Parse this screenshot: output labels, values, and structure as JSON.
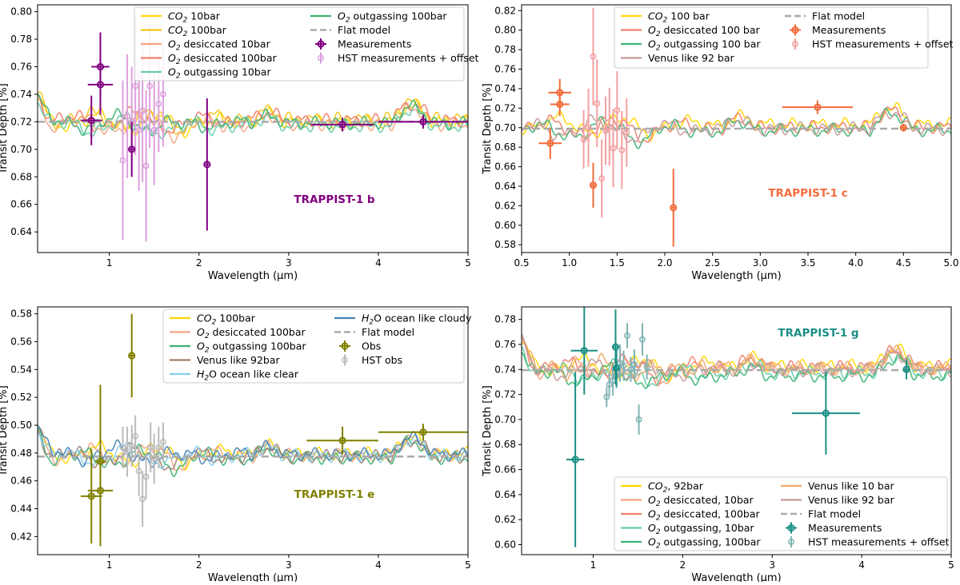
{
  "chart_data": [
    {
      "type": "line",
      "title": "TRAPPIST-1 b",
      "title_color": "#800080",
      "xlabel": "Wavelength (μm)",
      "ylabel": "Transit Depth [%]",
      "xlim": [
        0.2,
        5.0
      ],
      "ylim": [
        0.625,
        0.805
      ],
      "xticks": [
        1,
        2,
        3,
        4,
        5
      ],
      "yticks": [
        0.64,
        0.66,
        0.68,
        0.7,
        0.72,
        0.74,
        0.76,
        0.78,
        0.8
      ],
      "ytick_format": 2,
      "baseline": 0.72,
      "legend_position": "top-center",
      "series": [
        {
          "name": "CO2 10bar",
          "prefix": "CO",
          "sub": "2",
          "suffix": " 10bar",
          "color": "#ffd700",
          "offset": 0.0
        },
        {
          "name": "CO2 100bar",
          "prefix": "CO",
          "sub": "2",
          "suffix": " 100bar",
          "color": "#f5c518",
          "offset": 0.002
        },
        {
          "name": "O2 desiccated 10bar",
          "prefix": "O",
          "sub": "2",
          "suffix": " desiccated 10bar",
          "color": "#f4a582",
          "offset": -0.002
        },
        {
          "name": "O2 desiccated 100bar",
          "prefix": "O",
          "sub": "2",
          "suffix": " desiccated 100bar",
          "color": "#f08070",
          "offset": 0.001
        },
        {
          "name": "O2 outgassing 10bar",
          "prefix": "O",
          "sub": "2",
          "suffix": " outgassing 10bar",
          "color": "#66cdaa",
          "offset": -0.003
        },
        {
          "name": "O2 outgassing 100bar",
          "prefix": "O",
          "sub": "2",
          "suffix": " outgassing 100bar",
          "color": "#3cb371",
          "offset": -0.001
        },
        {
          "name": "Flat model",
          "color": "#aaaaaa",
          "dashed": true
        }
      ],
      "measurements": {
        "name": "Measurements",
        "color": "#800080",
        "points": [
          {
            "x": 0.8,
            "y": 0.721,
            "xerr": 0.12,
            "yerr": 0.018
          },
          {
            "x": 0.9,
            "y": 0.76,
            "xerr": 0.1,
            "yerr": 0.025
          },
          {
            "x": 0.9,
            "y": 0.747,
            "xerr": 0.14,
            "yerr": 0.022
          },
          {
            "x": 1.25,
            "y": 0.7,
            "xerr": 0.04,
            "yerr": 0.02
          },
          {
            "x": 2.09,
            "y": 0.689,
            "xerr": 0.02,
            "yerr": 0.048
          },
          {
            "x": 3.6,
            "y": 0.718,
            "xerr": 0.35,
            "yerr": 0.005
          },
          {
            "x": 4.5,
            "y": 0.72,
            "xerr": 0.5,
            "yerr": 0.005
          }
        ]
      },
      "hst": {
        "name": "HST measurements + offset",
        "color": "#dda0dd",
        "points": [
          {
            "x": 1.15,
            "y": 0.692,
            "yerr": 0.058
          },
          {
            "x": 1.2,
            "y": 0.724,
            "yerr": 0.045
          },
          {
            "x": 1.25,
            "y": 0.72,
            "yerr": 0.04
          },
          {
            "x": 1.29,
            "y": 0.746,
            "yerr": 0.05
          },
          {
            "x": 1.33,
            "y": 0.714,
            "yerr": 0.044
          },
          {
            "x": 1.37,
            "y": 0.728,
            "yerr": 0.052
          },
          {
            "x": 1.41,
            "y": 0.688,
            "yerr": 0.055
          },
          {
            "x": 1.45,
            "y": 0.746,
            "yerr": 0.045
          },
          {
            "x": 1.5,
            "y": 0.714,
            "yerr": 0.04
          },
          {
            "x": 1.55,
            "y": 0.733,
            "yerr": 0.035
          },
          {
            "x": 1.6,
            "y": 0.74,
            "yerr": 0.038
          }
        ]
      },
      "legend_columns": [
        [
          "CO2 10bar",
          "CO2 100bar",
          "O2 desiccated 10bar",
          "O2 desiccated 100bar",
          "O2 outgassing 10bar"
        ],
        [
          "O2 outgassing 100bar",
          "Flat model",
          "Measurements",
          "HST measurements + offset"
        ]
      ]
    },
    {
      "type": "line",
      "title": "TRAPPIST-1 c",
      "title_color": "#f26b3a",
      "xlabel": "Wavelength (μm)",
      "ylabel": "Transit Depth [%]",
      "xlim": [
        0.5,
        5.0
      ],
      "ylim": [
        0.572,
        0.826
      ],
      "xticks": [
        0.5,
        1.0,
        1.5,
        2.0,
        2.5,
        3.0,
        3.5,
        4.0,
        4.5,
        5.0
      ],
      "xtick_format": 1,
      "yticks": [
        0.58,
        0.6,
        0.62,
        0.64,
        0.66,
        0.68,
        0.7,
        0.72,
        0.74,
        0.76,
        0.78,
        0.8,
        0.82
      ],
      "ytick_format": 2,
      "baseline": 0.699,
      "legend_position": "top-center",
      "series": [
        {
          "name": "CO2 100 bar",
          "prefix": "CO",
          "sub": "2",
          "suffix": " 100 bar",
          "color": "#ffd700",
          "offset": 0.003
        },
        {
          "name": "O2 desiccated 100 bar",
          "prefix": "O",
          "sub": "2",
          "suffix": " desiccated 100 bar",
          "color": "#f08070",
          "offset": 0.001
        },
        {
          "name": "O2 outgassing 100 bar",
          "prefix": "O",
          "sub": "2",
          "suffix": " outgassing 100 bar",
          "color": "#3cb371",
          "offset": -0.001
        },
        {
          "name": "Venus like 92 bar",
          "color": "#c49a9a",
          "offset": 0.0
        },
        {
          "name": "Flat model",
          "color": "#aaaaaa",
          "dashed": true
        }
      ],
      "measurements": {
        "name": "Measurements",
        "color": "#f26b3a",
        "points": [
          {
            "x": 0.8,
            "y": 0.684,
            "xerr": 0.12,
            "yerr": 0.016
          },
          {
            "x": 0.9,
            "y": 0.736,
            "xerr": 0.12,
            "yerr": 0.014
          },
          {
            "x": 0.9,
            "y": 0.724,
            "xerr": 0.1,
            "yerr": 0.012
          },
          {
            "x": 1.25,
            "y": 0.641,
            "xerr": 0.03,
            "yerr": 0.023
          },
          {
            "x": 2.09,
            "y": 0.618,
            "xerr": 0.02,
            "yerr": 0.04
          },
          {
            "x": 3.6,
            "y": 0.721,
            "xerr": 0.37,
            "yerr": 0.007
          },
          {
            "x": 4.5,
            "y": 0.7,
            "xerr": 0.03,
            "yerr": 0.004
          }
        ]
      },
      "hst": {
        "name": "HST measurements + offset",
        "color": "#f4a0a0",
        "points": [
          {
            "x": 1.15,
            "y": 0.688,
            "yerr": 0.03
          },
          {
            "x": 1.2,
            "y": 0.7,
            "yerr": 0.04
          },
          {
            "x": 1.25,
            "y": 0.773,
            "yerr": 0.05
          },
          {
            "x": 1.29,
            "y": 0.725,
            "yerr": 0.045
          },
          {
            "x": 1.34,
            "y": 0.648,
            "yerr": 0.04
          },
          {
            "x": 1.38,
            "y": 0.697,
            "yerr": 0.035
          },
          {
            "x": 1.42,
            "y": 0.701,
            "yerr": 0.04
          },
          {
            "x": 1.46,
            "y": 0.679,
            "yerr": 0.04
          },
          {
            "x": 1.5,
            "y": 0.718,
            "yerr": 0.04
          },
          {
            "x": 1.55,
            "y": 0.677,
            "yerr": 0.04
          },
          {
            "x": 1.6,
            "y": 0.695,
            "yerr": 0.035
          }
        ]
      },
      "legend_columns": [
        [
          "CO2 100 bar",
          "O2 desiccated 100 bar",
          "O2 outgassing 100 bar",
          "Venus like 92 bar"
        ],
        [
          "Flat model",
          "Measurements",
          "HST measurements + offset"
        ]
      ]
    },
    {
      "type": "line",
      "title": "TRAPPIST-1 e",
      "title_color": "#808000",
      "xlabel": "Wavelength (μm)",
      "ylabel": "Transit Depth [%]",
      "xlim": [
        0.2,
        5.0
      ],
      "ylim": [
        0.407,
        0.585
      ],
      "xticks": [
        1,
        2,
        3,
        4,
        5
      ],
      "yticks": [
        0.42,
        0.44,
        0.46,
        0.48,
        0.5,
        0.52,
        0.54,
        0.56,
        0.58
      ],
      "ytick_format": 2,
      "baseline": 0.4775,
      "legend_position": "top-center",
      "series": [
        {
          "name": "CO2 100bar",
          "prefix": "CO",
          "sub": "2",
          "suffix": " 100bar",
          "color": "#ffd700",
          "offset": 0.002
        },
        {
          "name": "O2 desiccated 100bar",
          "prefix": "O",
          "sub": "2",
          "suffix": " desiccated 100bar",
          "color": "#f4a582",
          "offset": 0.001
        },
        {
          "name": "O2 outgassing 100bar",
          "prefix": "O",
          "sub": "2",
          "suffix": " outgassing 100bar",
          "color": "#3cb371",
          "offset": -0.001
        },
        {
          "name": "Venus like 92bar",
          "color": "#a08070",
          "offset": 0.0
        },
        {
          "name": "H2O ocean like clear",
          "prefix": "H",
          "sub": "2",
          "suffix": "O ocean like clear",
          "color": "#87ceeb",
          "offset": 0.0005
        },
        {
          "name": "H2O ocean like cloudy",
          "prefix": "H",
          "sub": "2",
          "suffix": "O ocean like cloudy",
          "color": "#4682b4",
          "offset": 0.0015
        },
        {
          "name": "Flat model",
          "color": "#aaaaaa",
          "dashed": true
        }
      ],
      "measurements": {
        "name": "Obs",
        "color": "#808000",
        "points": [
          {
            "x": 0.8,
            "y": 0.449,
            "xerr": 0.12,
            "yerr": 0.034
          },
          {
            "x": 0.9,
            "y": 0.453,
            "xerr": 0.14,
            "yerr": 0.04
          },
          {
            "x": 0.9,
            "y": 0.474,
            "xerr": 0.06,
            "yerr": 0.055
          },
          {
            "x": 1.25,
            "y": 0.55,
            "xerr": 0.03,
            "yerr": 0.03
          },
          {
            "x": 3.6,
            "y": 0.489,
            "xerr": 0.4,
            "yerr": 0.01
          },
          {
            "x": 4.5,
            "y": 0.495,
            "xerr": 0.5,
            "yerr": 0.006
          }
        ]
      },
      "hst": {
        "name": "HST obs",
        "color": "#bbbbbb",
        "points": [
          {
            "x": 1.15,
            "y": 0.484,
            "yerr": 0.015
          },
          {
            "x": 1.2,
            "y": 0.481,
            "yerr": 0.018
          },
          {
            "x": 1.25,
            "y": 0.485,
            "yerr": 0.015
          },
          {
            "x": 1.29,
            "y": 0.492,
            "yerr": 0.015
          },
          {
            "x": 1.33,
            "y": 0.467,
            "yerr": 0.018
          },
          {
            "x": 1.37,
            "y": 0.447,
            "yerr": 0.02
          },
          {
            "x": 1.41,
            "y": 0.463,
            "yerr": 0.016
          },
          {
            "x": 1.46,
            "y": 0.484,
            "yerr": 0.018
          },
          {
            "x": 1.5,
            "y": 0.476,
            "yerr": 0.018
          },
          {
            "x": 1.55,
            "y": 0.484,
            "yerr": 0.015
          },
          {
            "x": 1.6,
            "y": 0.488,
            "yerr": 0.014
          }
        ]
      },
      "legend_columns": [
        [
          "CO2 100bar",
          "O2 desiccated 100bar",
          "O2 outgassing 100bar",
          "Venus like 92bar",
          "H2O ocean like clear"
        ],
        [
          "H2O ocean like cloudy",
          "Flat model",
          "Obs",
          "HST obs"
        ]
      ]
    },
    {
      "type": "line",
      "title": "TRAPPIST-1 g",
      "title_color": "#1a8f85",
      "xlabel": "Wavelength (μm)",
      "ylabel": "Transit Depth [%]",
      "xlim": [
        0.2,
        5.0
      ],
      "ylim": [
        0.592,
        0.79
      ],
      "xticks": [
        1,
        2,
        3,
        4,
        5
      ],
      "yticks": [
        0.6,
        0.62,
        0.64,
        0.66,
        0.68,
        0.7,
        0.72,
        0.74,
        0.76,
        0.78
      ],
      "ytick_format": 2,
      "baseline": 0.7395,
      "legend_position": "bottom-center",
      "series": [
        {
          "name": "CO2, 92bar",
          "prefix": "CO",
          "sub": "2",
          "suffix": ", 92bar",
          "color": "#ffd700",
          "offset": 0.003
        },
        {
          "name": "O2 desiccated, 10bar",
          "prefix": "O",
          "sub": "2",
          "suffix": " desiccated, 10bar",
          "color": "#f4a582",
          "offset": 0.001
        },
        {
          "name": "O2 desiccated, 100bar",
          "prefix": "O",
          "sub": "2",
          "suffix": " desiccated, 100bar",
          "color": "#f08070",
          "offset": 0.002
        },
        {
          "name": "O2 outgassing, 10bar",
          "prefix": "O",
          "sub": "2",
          "suffix": " outgassing, 10bar",
          "color": "#66cdaa",
          "offset": -0.002
        },
        {
          "name": "O2 outgassing, 100bar",
          "prefix": "O",
          "sub": "2",
          "suffix": " outgassing, 100bar",
          "color": "#3cb371",
          "offset": -0.004
        },
        {
          "name": "Venus like 10 bar",
          "color": "#f0a868",
          "offset": 0.0015
        },
        {
          "name": "Venus like 92 bar",
          "color": "#c49a9a",
          "offset": 0.0
        },
        {
          "name": "Flat model",
          "color": "#aaaaaa",
          "dashed": true
        }
      ],
      "measurements": {
        "name": "Measurements",
        "color": "#1a8f85",
        "points": [
          {
            "x": 0.8,
            "y": 0.668,
            "xerr": 0.1,
            "yerr": 0.07
          },
          {
            "x": 0.9,
            "y": 0.755,
            "xerr": 0.15,
            "yerr": 0.035
          },
          {
            "x": 1.25,
            "y": 0.758,
            "xerr": 0.04,
            "yerr": 0.03
          },
          {
            "x": 1.26,
            "y": 0.741,
            "xerr": 0.03,
            "yerr": 0.015
          },
          {
            "x": 3.6,
            "y": 0.705,
            "xerr": 0.38,
            "yerr": 0.033
          },
          {
            "x": 4.5,
            "y": 0.74,
            "xerr": 0.04,
            "yerr": 0.008
          }
        ]
      },
      "hst": {
        "name": "HST measurements + offset",
        "color": "#7fb3b3",
        "points": [
          {
            "x": 1.15,
            "y": 0.718,
            "yerr": 0.008
          },
          {
            "x": 1.18,
            "y": 0.728,
            "yerr": 0.01
          },
          {
            "x": 1.22,
            "y": 0.731,
            "yerr": 0.012
          },
          {
            "x": 1.26,
            "y": 0.735,
            "yerr": 0.01
          },
          {
            "x": 1.3,
            "y": 0.745,
            "yerr": 0.015
          },
          {
            "x": 1.34,
            "y": 0.743,
            "yerr": 0.012
          },
          {
            "x": 1.38,
            "y": 0.767,
            "yerr": 0.01
          },
          {
            "x": 1.42,
            "y": 0.74,
            "yerr": 0.01
          },
          {
            "x": 1.46,
            "y": 0.744,
            "yerr": 0.012
          },
          {
            "x": 1.51,
            "y": 0.7,
            "yerr": 0.012
          },
          {
            "x": 1.55,
            "y": 0.764,
            "yerr": 0.013
          },
          {
            "x": 1.6,
            "y": 0.742,
            "yerr": 0.01
          }
        ]
      },
      "legend_columns": [
        [
          "CO2, 92bar",
          "O2 desiccated, 10bar",
          "O2 desiccated, 100bar",
          "O2 outgassing, 10bar",
          "O2 outgassing, 100bar"
        ],
        [
          "Venus like 10 bar",
          "Venus like 92 bar",
          "Flat model",
          "Measurements",
          "HST measurements + offset"
        ]
      ]
    }
  ]
}
